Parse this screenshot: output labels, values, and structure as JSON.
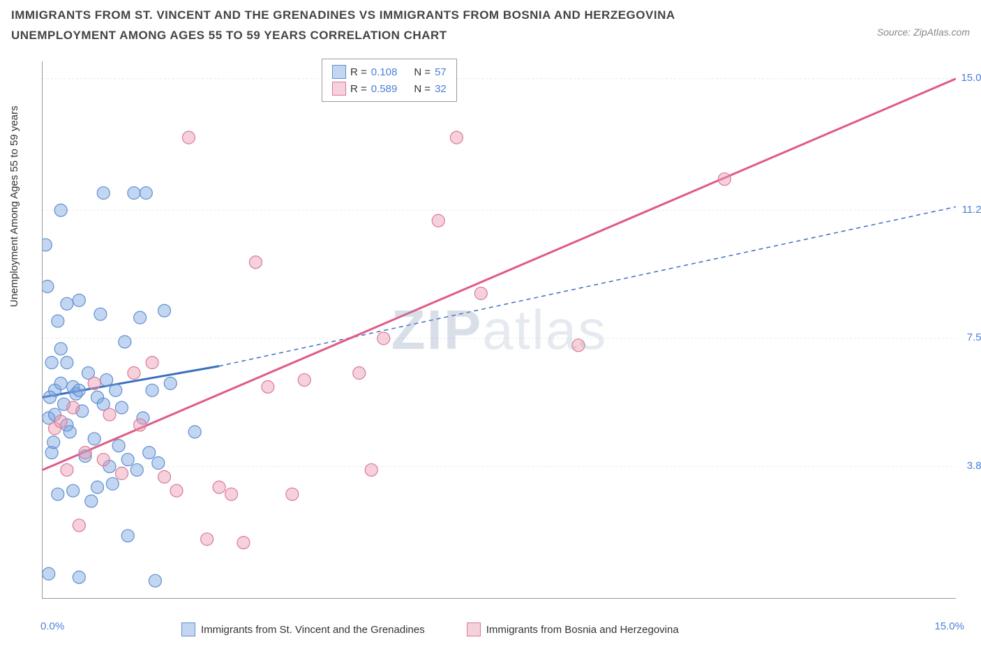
{
  "title": "IMMIGRANTS FROM ST. VINCENT AND THE GRENADINES VS IMMIGRANTS FROM BOSNIA AND HERZEGOVINA UNEMPLOYMENT AMONG AGES 55 TO 59 YEARS CORRELATION CHART",
  "source": "Source: ZipAtlas.com",
  "y_axis_label": "Unemployment Among Ages 55 to 59 years",
  "watermark_bold": "ZIP",
  "watermark_light": "atlas",
  "chart": {
    "type": "scatter",
    "xlim": [
      0,
      15
    ],
    "ylim": [
      0,
      15.5
    ],
    "x_tick_labels": {
      "min": "0.0%",
      "max": "15.0%"
    },
    "y_tick_labels": [
      "3.8%",
      "7.5%",
      "11.2%",
      "15.0%"
    ],
    "y_tick_values": [
      3.8,
      7.5,
      11.2,
      15.0
    ],
    "x_minor_ticks": [
      1.875,
      3.75,
      5.625,
      7.5,
      9.375,
      11.25,
      13.125
    ],
    "grid_color": "#e8e8e8",
    "background_color": "#ffffff",
    "series": [
      {
        "name": "Immigrants from St. Vincent and the Grenadines",
        "color_fill": "rgba(120, 165, 225, 0.45)",
        "color_stroke": "#5f8fd1",
        "trend_color": "#3b6fc0",
        "R": "0.108",
        "N": "57",
        "trend_solid": {
          "x1": 0,
          "y1": 5.8,
          "x2": 2.9,
          "y2": 6.7
        },
        "trend_dashed": {
          "x1": 2.9,
          "y1": 6.7,
          "x2": 15,
          "y2": 11.3
        },
        "points": [
          [
            0.05,
            10.2
          ],
          [
            0.1,
            5.2
          ],
          [
            0.15,
            4.2
          ],
          [
            0.2,
            6.0
          ],
          [
            0.2,
            5.3
          ],
          [
            0.25,
            8.0
          ],
          [
            0.3,
            11.2
          ],
          [
            0.3,
            6.2
          ],
          [
            0.35,
            5.6
          ],
          [
            0.4,
            8.5
          ],
          [
            0.4,
            5.0
          ],
          [
            0.45,
            4.8
          ],
          [
            0.5,
            6.1
          ],
          [
            0.5,
            3.1
          ],
          [
            0.55,
            5.9
          ],
          [
            0.6,
            8.6
          ],
          [
            0.6,
            6.0
          ],
          [
            0.65,
            5.4
          ],
          [
            0.7,
            4.1
          ],
          [
            0.75,
            6.5
          ],
          [
            0.8,
            2.8
          ],
          [
            0.85,
            4.6
          ],
          [
            0.9,
            5.8
          ],
          [
            0.95,
            8.2
          ],
          [
            1.0,
            5.6
          ],
          [
            1.0,
            11.7
          ],
          [
            1.05,
            6.3
          ],
          [
            1.1,
            3.8
          ],
          [
            1.15,
            3.3
          ],
          [
            1.2,
            6.0
          ],
          [
            1.25,
            4.4
          ],
          [
            1.3,
            5.5
          ],
          [
            1.35,
            7.4
          ],
          [
            1.4,
            4.0
          ],
          [
            1.5,
            11.7
          ],
          [
            1.55,
            3.7
          ],
          [
            1.6,
            8.1
          ],
          [
            1.65,
            5.2
          ],
          [
            1.7,
            11.7
          ],
          [
            1.75,
            4.2
          ],
          [
            1.8,
            6.0
          ],
          [
            1.85,
            0.5
          ],
          [
            1.9,
            3.9
          ],
          [
            2.0,
            8.3
          ],
          [
            0.1,
            0.7
          ],
          [
            0.6,
            0.6
          ],
          [
            0.25,
            3.0
          ],
          [
            0.9,
            3.2
          ],
          [
            1.4,
            1.8
          ],
          [
            2.5,
            4.8
          ],
          [
            2.1,
            6.2
          ],
          [
            0.15,
            6.8
          ],
          [
            0.08,
            9.0
          ],
          [
            0.3,
            7.2
          ],
          [
            0.12,
            5.8
          ],
          [
            0.4,
            6.8
          ],
          [
            0.18,
            4.5
          ]
        ]
      },
      {
        "name": "Immigrants from Bosnia and Herzegovina",
        "color_fill": "rgba(235, 150, 175, 0.45)",
        "color_stroke": "#d97a98",
        "trend_color": "#e05a85",
        "R": "0.589",
        "N": "32",
        "trend_solid": {
          "x1": 0,
          "y1": 3.7,
          "x2": 15,
          "y2": 15.0
        },
        "points": [
          [
            0.2,
            4.9
          ],
          [
            0.3,
            5.1
          ],
          [
            0.4,
            3.7
          ],
          [
            0.5,
            5.5
          ],
          [
            0.6,
            2.1
          ],
          [
            0.7,
            4.2
          ],
          [
            0.85,
            6.2
          ],
          [
            1.0,
            4.0
          ],
          [
            1.1,
            5.3
          ],
          [
            1.3,
            3.6
          ],
          [
            1.5,
            6.5
          ],
          [
            1.6,
            5.0
          ],
          [
            1.8,
            6.8
          ],
          [
            2.0,
            3.5
          ],
          [
            2.2,
            3.1
          ],
          [
            2.4,
            13.3
          ],
          [
            2.7,
            1.7
          ],
          [
            2.9,
            3.2
          ],
          [
            3.1,
            3.0
          ],
          [
            3.3,
            1.6
          ],
          [
            3.5,
            9.7
          ],
          [
            3.7,
            6.1
          ],
          [
            4.1,
            3.0
          ],
          [
            4.3,
            6.3
          ],
          [
            5.2,
            6.5
          ],
          [
            5.4,
            3.7
          ],
          [
            5.6,
            7.5
          ],
          [
            6.5,
            10.9
          ],
          [
            6.8,
            13.3
          ],
          [
            7.2,
            8.8
          ],
          [
            8.8,
            7.3
          ],
          [
            11.2,
            12.1
          ]
        ]
      }
    ],
    "legend_box": {
      "R_label": "R =",
      "N_label": "N ="
    }
  },
  "bottom_legend": {
    "series1": "Immigrants from St. Vincent and the Grenadines",
    "series2": "Immigrants from Bosnia and Herzegovina"
  }
}
